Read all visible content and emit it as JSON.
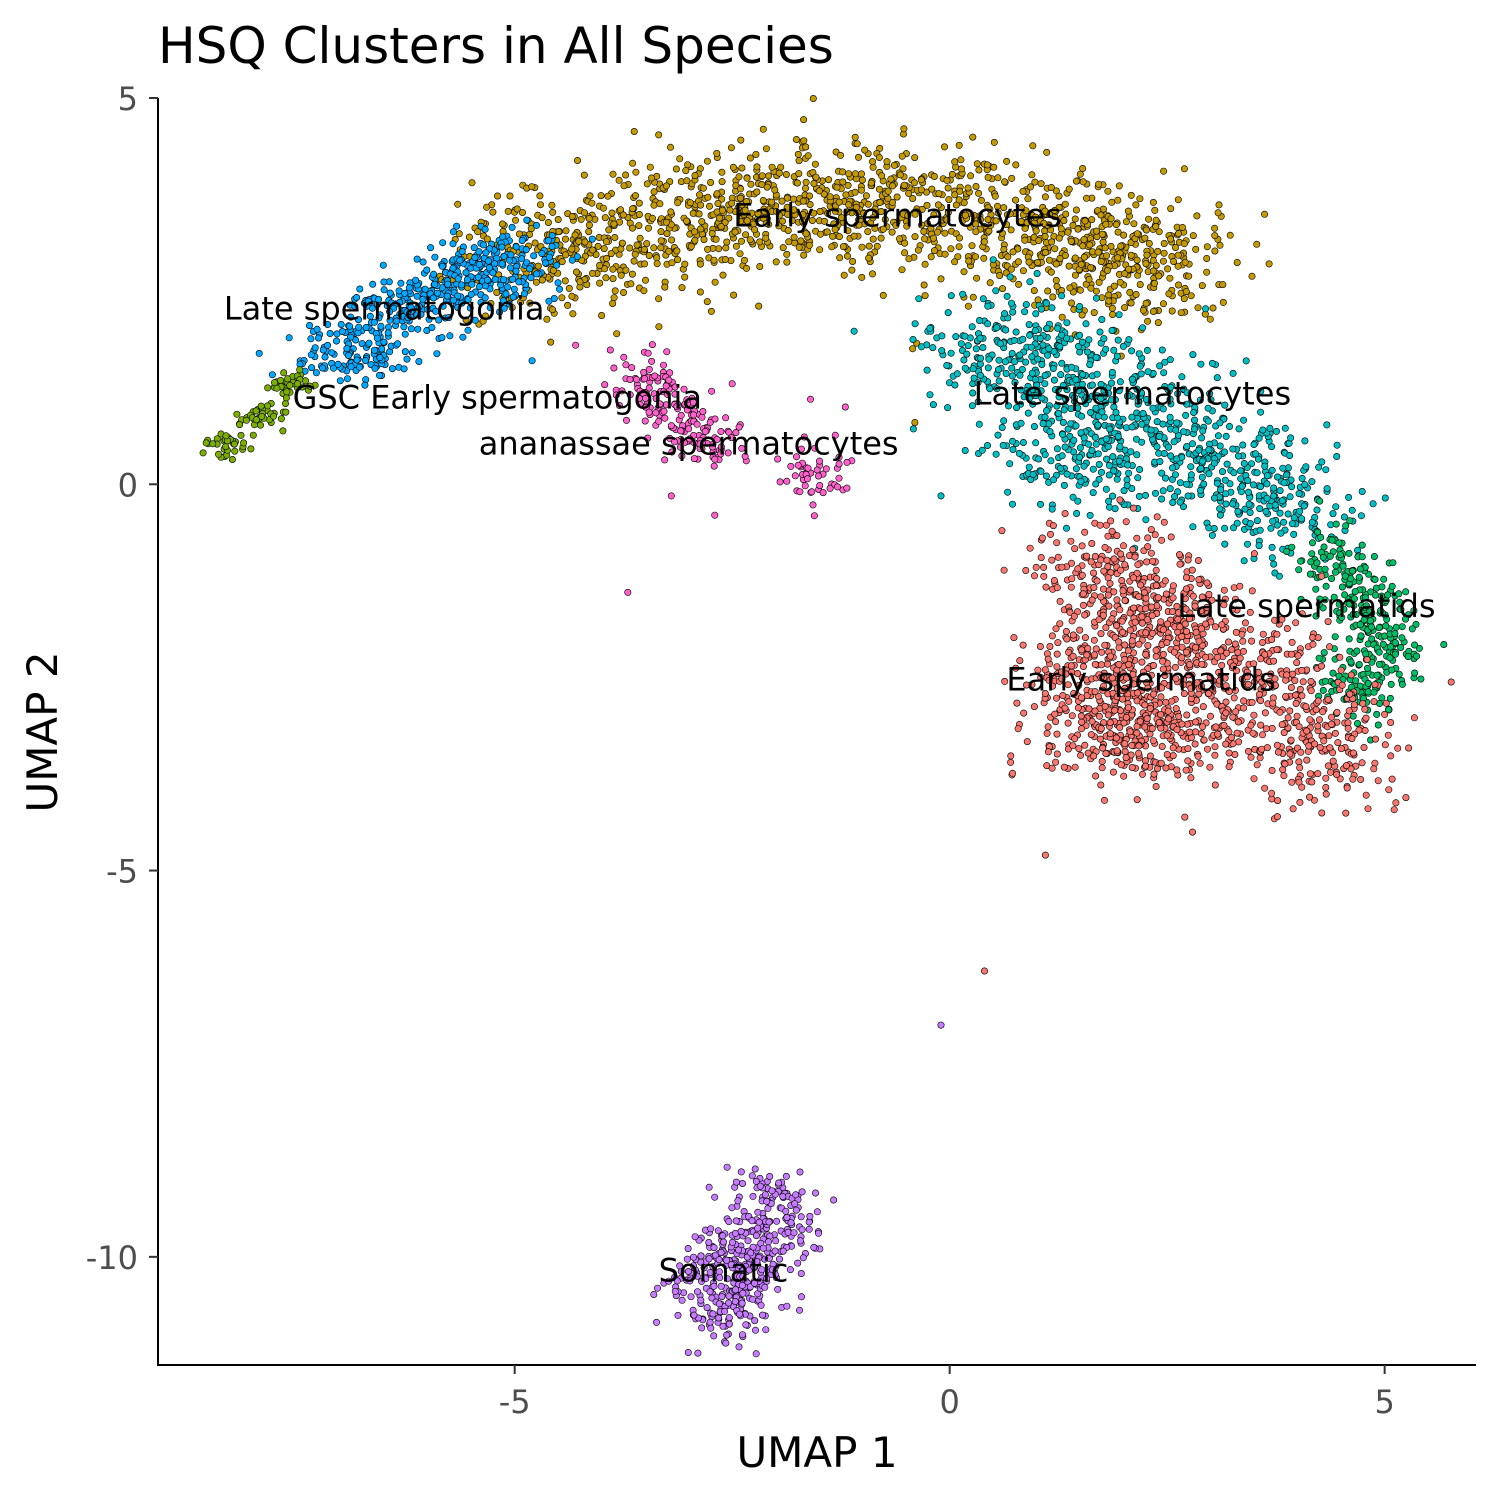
{
  "chart_data": {
    "type": "scatter",
    "title": "HSQ Clusters in All Species",
    "xlabel": "UMAP 1",
    "ylabel": "UMAP 2",
    "xlim": [
      -9.1,
      6.05
    ],
    "ylim": [
      -11.4,
      5.0
    ],
    "x_ticks": [
      {
        "value": -5,
        "label": "-5"
      },
      {
        "value": 0,
        "label": "0"
      },
      {
        "value": 5,
        "label": "5"
      }
    ],
    "y_ticks": [
      {
        "value": 5,
        "label": "5"
      },
      {
        "value": 0,
        "label": "0"
      },
      {
        "value": -5,
        "label": "-5"
      },
      {
        "value": -10,
        "label": "-10"
      }
    ],
    "grid": false,
    "legend": "none",
    "series": [
      {
        "name": "Early spermatocytes",
        "color": "#C49A00",
        "centers": [
          [
            -4.5,
            3.0
          ],
          [
            -3.2,
            3.3
          ],
          [
            -2.0,
            3.6
          ],
          [
            -0.8,
            3.7
          ],
          [
            0.4,
            3.4
          ],
          [
            1.5,
            3.1
          ],
          [
            2.1,
            2.8
          ]
        ],
        "spread": [
          0.65,
          0.42
        ],
        "n": 1500
      },
      {
        "name": "Late spermatogonia",
        "color": "#00A9FF",
        "centers": [
          [
            -6.9,
            1.7
          ],
          [
            -6.3,
            2.3
          ],
          [
            -5.7,
            2.6
          ],
          [
            -5.1,
            2.9
          ]
        ],
        "spread": [
          0.35,
          0.22
        ],
        "n": 500
      },
      {
        "name": "GSC Early spermatogonia",
        "color": "#7CAE00",
        "centers": [
          [
            -8.3,
            0.5
          ],
          [
            -7.9,
            0.9
          ],
          [
            -7.6,
            1.3
          ]
        ],
        "spread": [
          0.12,
          0.08
        ],
        "n": 110
      },
      {
        "name": "ananassae spermatocytes",
        "color": "#FF61CC",
        "centers": [
          [
            -3.5,
            1.3
          ],
          [
            -3.2,
            0.9
          ],
          [
            -2.8,
            0.6
          ],
          [
            -1.5,
            0.15
          ]
        ],
        "spread": [
          0.22,
          0.2
        ],
        "n": 230
      },
      {
        "name": "Late spermatocytes",
        "color": "#00BFC4",
        "centers": [
          [
            0.6,
            1.8
          ],
          [
            1.4,
            1.4
          ],
          [
            2.2,
            0.9
          ],
          [
            1.6,
            0.4
          ],
          [
            3.0,
            0.3
          ],
          [
            3.8,
            -0.2
          ]
        ],
        "spread": [
          0.5,
          0.38
        ],
        "n": 1000
      },
      {
        "name": "Late spermatids",
        "color": "#00BE67",
        "centers": [
          [
            4.4,
            -1.0
          ],
          [
            4.8,
            -1.6
          ],
          [
            5.0,
            -2.1
          ],
          [
            4.7,
            -2.6
          ]
        ],
        "spread": [
          0.22,
          0.25
        ],
        "n": 330
      },
      {
        "name": "Early spermatids",
        "color": "#F8766D",
        "centers": [
          [
            1.8,
            -1.2
          ],
          [
            2.6,
            -1.8
          ],
          [
            1.6,
            -2.4
          ],
          [
            2.6,
            -3.0
          ],
          [
            3.6,
            -2.6
          ],
          [
            4.3,
            -3.4
          ],
          [
            1.9,
            -3.2
          ]
        ],
        "spread": [
          0.45,
          0.4
        ],
        "n": 1400
      },
      {
        "name": "Somatic",
        "color": "#C77CFF",
        "centers": [
          [
            -2.4,
            -10.0
          ],
          [
            -2.0,
            -9.5
          ],
          [
            -2.6,
            -10.5
          ]
        ],
        "spread": [
          0.3,
          0.3
        ],
        "n": 450
      }
    ],
    "outliers": [
      {
        "x": 1.1,
        "y": -4.8,
        "color": "#F8766D"
      },
      {
        "x": 0.4,
        "y": -6.3,
        "color": "#F8766D"
      },
      {
        "x": -0.1,
        "y": -7.0,
        "color": "#C77CFF"
      },
      {
        "x": 0.7,
        "y": -3.6,
        "color": "#F8766D"
      },
      {
        "x": 3.7,
        "y": -4.0,
        "color": "#F8766D"
      },
      {
        "x": -3.7,
        "y": -1.4,
        "color": "#FF61CC"
      },
      {
        "x": -2.7,
        "y": -0.4,
        "color": "#FF61CC"
      },
      {
        "x": -3.2,
        "y": -0.15,
        "color": "#FF61CC"
      },
      {
        "x": -0.1,
        "y": -0.15,
        "color": "#00BFC4"
      },
      {
        "x": 0.6,
        "y": -0.6,
        "color": "#F8766D"
      },
      {
        "x": -1.2,
        "y": 1.0,
        "color": "#FF61CC"
      },
      {
        "x": -1.6,
        "y": 1.1,
        "color": "#FF61CC"
      },
      {
        "x": -4.3,
        "y": 1.8,
        "color": "#FF61CC"
      },
      {
        "x": -2.5,
        "y": 1.3,
        "color": "#FF61CC"
      },
      {
        "x": -4.8,
        "y": 1.6,
        "color": "#00A9FF"
      },
      {
        "x": 0.8,
        "y": 0.4,
        "color": "#00BFC4"
      },
      {
        "x": -0.4,
        "y": 0.8,
        "color": "#C49A00"
      }
    ],
    "labels": [
      {
        "text": "Early spermatocytes",
        "x": -0.6,
        "y": 3.45
      },
      {
        "text": "Late spermatogonia",
        "x": -6.5,
        "y": 2.25
      },
      {
        "text": "GSC Early spermatogonia",
        "x": -5.2,
        "y": 1.1
      },
      {
        "text": "ananassae spermatocytes",
        "x": -3.0,
        "y": 0.5
      },
      {
        "text": "Late spermatocytes",
        "x": 2.1,
        "y": 1.15
      },
      {
        "text": "Late spermatids",
        "x": 4.1,
        "y": -1.6
      },
      {
        "text": "Early spermatids",
        "x": 2.2,
        "y": -2.55
      },
      {
        "text": "Somatic",
        "x": -2.6,
        "y": -10.2
      }
    ]
  }
}
